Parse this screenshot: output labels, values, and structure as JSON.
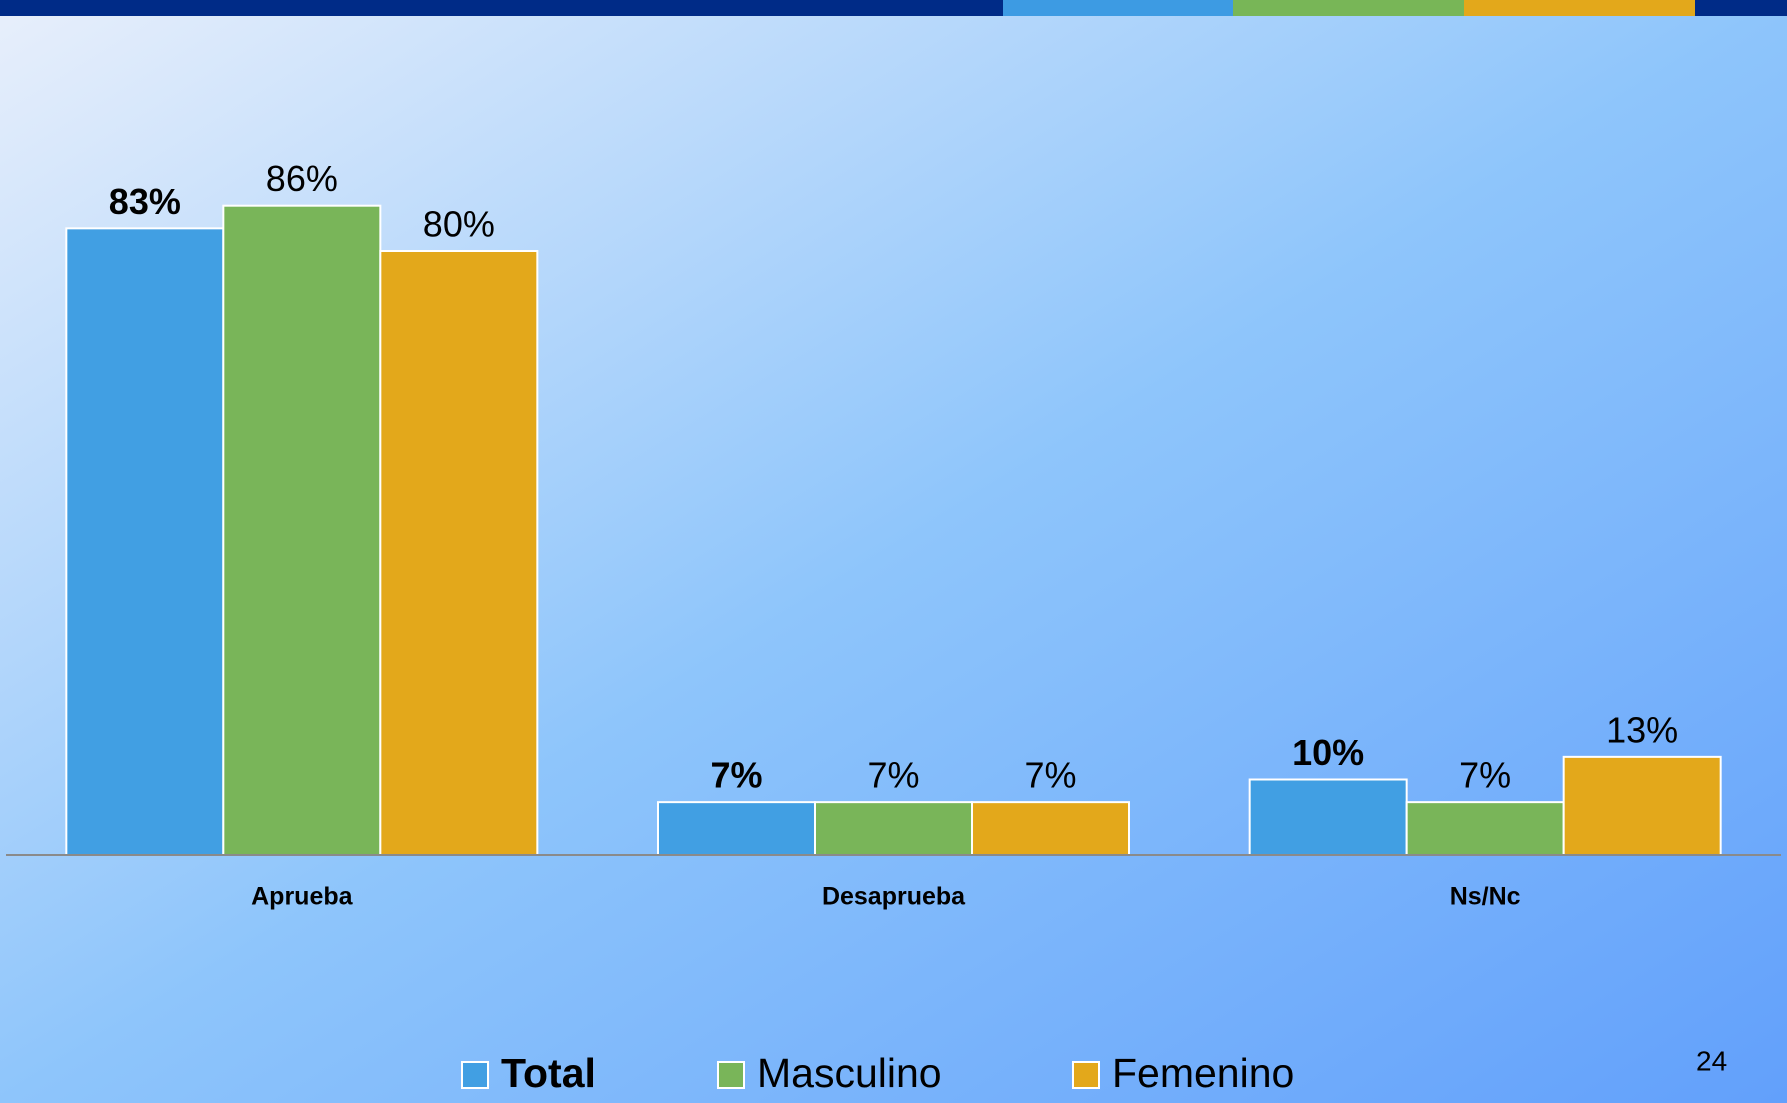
{
  "chart_data": {
    "type": "bar",
    "categories": [
      "Aprueba",
      "Desaprueba",
      "Ns/Nc"
    ],
    "series": [
      {
        "name": "Total",
        "color": "#419fe3",
        "values": [
          83,
          7,
          10
        ],
        "value_labels": [
          "83%",
          "7%",
          "10%"
        ]
      },
      {
        "name": "Masculino",
        "color": "#79b559",
        "values": [
          86,
          7,
          7
        ],
        "value_labels": [
          "86%",
          "7%",
          "7%"
        ]
      },
      {
        "name": "Femenino",
        "color": "#e3a81b",
        "values": [
          80,
          7,
          13
        ],
        "value_labels": [
          "80%",
          "7%",
          "13%"
        ]
      }
    ],
    "ylim": [
      0,
      100
    ]
  },
  "page_number": "24"
}
